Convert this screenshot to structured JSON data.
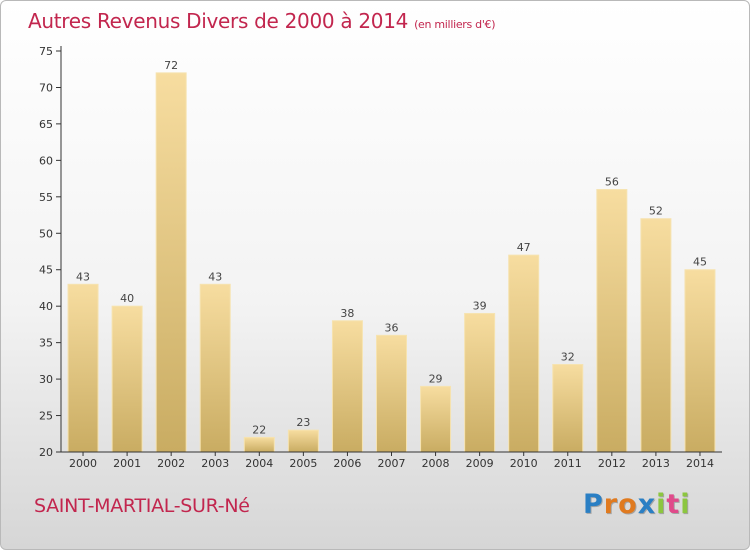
{
  "header": {
    "title": "Autres Revenus Divers de 2000 à 2014",
    "unit": "(en milliers d'€)"
  },
  "footer": {
    "city": "SAINT-MARTIAL-SUR-Né"
  },
  "logo": {
    "letters": [
      "P",
      "r",
      "o",
      "x",
      "i",
      "t",
      "i"
    ],
    "colors": [
      "#2a7fc4",
      "#e07a1f",
      "#e07a1f",
      "#2a7fc4",
      "#8cc63f",
      "#e04a8a",
      "#8cc63f"
    ]
  },
  "colors": {
    "accent": "#c2264e",
    "bar_light": "#f7dda0",
    "bar_dark": "#c9ac62",
    "axis": "#333333"
  },
  "chart_data": {
    "type": "bar",
    "title": "Autres Revenus Divers de 2000 à 2014",
    "subtitle": "(en milliers d'€)",
    "categories": [
      "2000",
      "2001",
      "2002",
      "2003",
      "2004",
      "2005",
      "2006",
      "2007",
      "2008",
      "2009",
      "2010",
      "2011",
      "2012",
      "2013",
      "2014"
    ],
    "values": [
      43,
      40,
      72,
      43,
      22,
      23,
      38,
      36,
      29,
      39,
      47,
      32,
      56,
      52,
      45
    ],
    "ylim": [
      20,
      75
    ],
    "yticks": [
      20,
      25,
      30,
      35,
      40,
      45,
      50,
      55,
      60,
      65,
      70,
      75
    ],
    "grid": false,
    "legend": "none"
  }
}
